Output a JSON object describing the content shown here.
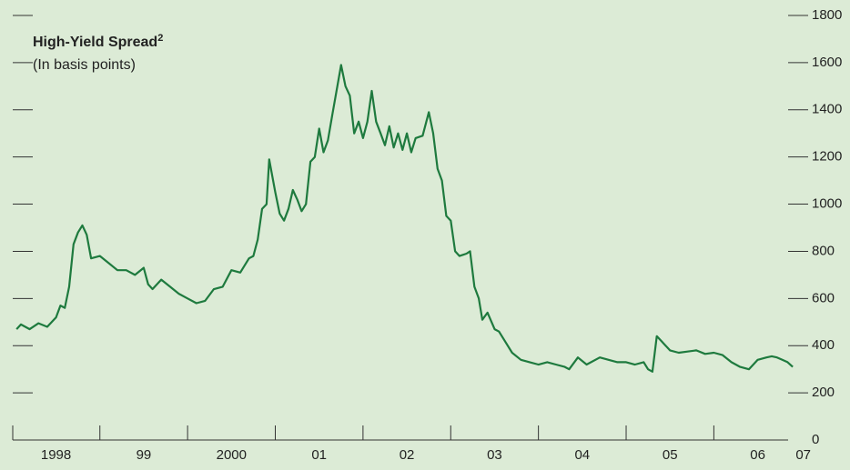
{
  "chart_data": {
    "type": "line",
    "title": "High-Yield Spread",
    "title_note": "2",
    "subtitle": "(In basis points)",
    "series": [
      {
        "color": "#1e7a3e",
        "x": [
          1998.05,
          1998.1,
          1998.2,
          1998.3,
          1998.4,
          1998.5,
          1998.55,
          1998.6,
          1998.65,
          1998.7,
          1998.75,
          1998.8,
          1998.85,
          1998.9,
          1999.0,
          1999.1,
          1999.2,
          1999.3,
          1999.4,
          1999.5,
          1999.55,
          1999.6,
          1999.7,
          1999.8,
          1999.9,
          2000.0,
          2000.1,
          2000.2,
          2000.3,
          2000.4,
          2000.5,
          2000.6,
          2000.7,
          2000.75,
          2000.8,
          2000.85,
          2000.9,
          2000.93,
          2001.0,
          2001.05,
          2001.1,
          2001.15,
          2001.2,
          2001.25,
          2001.3,
          2001.35,
          2001.4,
          2001.45,
          2001.5,
          2001.55,
          2001.6,
          2001.65,
          2001.75,
          2001.8,
          2001.85,
          2001.9,
          2001.95,
          2002.0,
          2002.05,
          2002.1,
          2002.15,
          2002.2,
          2002.25,
          2002.3,
          2002.35,
          2002.4,
          2002.45,
          2002.5,
          2002.55,
          2002.6,
          2002.68,
          2002.75,
          2002.8,
          2002.85,
          2002.9,
          2002.95,
          2003.0,
          2003.05,
          2003.1,
          2003.18,
          2003.22,
          2003.27,
          2003.32,
          2003.36,
          2003.42,
          2003.5,
          2003.55,
          2003.6,
          2003.7,
          2003.8,
          2003.9,
          2004.0,
          2004.1,
          2004.2,
          2004.3,
          2004.35,
          2004.45,
          2004.55,
          2004.7,
          2004.8,
          2004.9,
          2005.0,
          2005.1,
          2005.2,
          2005.25,
          2005.3,
          2005.35,
          2005.4,
          2005.45,
          2005.5,
          2005.6,
          2005.7,
          2005.8,
          2005.9,
          2006.0,
          2006.1,
          2006.2,
          2006.3,
          2006.4,
          2006.5,
          2006.6,
          2006.66,
          2006.72,
          2006.78,
          2006.84,
          2006.9
        ],
        "values": [
          470,
          490,
          470,
          495,
          480,
          520,
          570,
          560,
          650,
          830,
          880,
          910,
          870,
          770,
          780,
          750,
          720,
          720,
          700,
          730,
          660,
          640,
          680,
          650,
          620,
          600,
          580,
          590,
          640,
          650,
          720,
          710,
          770,
          780,
          850,
          980,
          1000,
          1190,
          1050,
          960,
          930,
          980,
          1060,
          1020,
          970,
          1000,
          1180,
          1200,
          1320,
          1220,
          1270,
          1380,
          1590,
          1500,
          1460,
          1300,
          1350,
          1280,
          1350,
          1480,
          1350,
          1300,
          1250,
          1330,
          1240,
          1300,
          1230,
          1300,
          1220,
          1280,
          1290,
          1390,
          1300,
          1150,
          1100,
          950,
          930,
          800,
          780,
          790,
          800,
          650,
          600,
          510,
          540,
          470,
          460,
          430,
          370,
          340,
          330,
          320,
          330,
          320,
          310,
          300,
          350,
          320,
          350,
          340,
          330,
          330,
          320,
          330,
          300,
          290,
          440,
          420,
          400,
          380,
          370,
          375,
          380,
          365,
          370,
          360,
          330,
          310,
          300,
          340,
          350,
          355,
          350,
          340,
          330,
          310
        ]
      }
    ],
    "xlim": [
      1997.965,
      2007.075
    ],
    "xticks": [
      1999,
      2000,
      2001,
      2002,
      2003,
      2004,
      2005,
      2006
    ],
    "xtick_labels": [
      {
        "value": 1998.5,
        "label": "1998"
      },
      {
        "value": 1999.5,
        "label": "99"
      },
      {
        "value": 2000.5,
        "label": "2000"
      },
      {
        "value": 2001.5,
        "label": "01"
      },
      {
        "value": 2002.5,
        "label": "02"
      },
      {
        "value": 2003.5,
        "label": "03"
      },
      {
        "value": 2004.5,
        "label": "04"
      },
      {
        "value": 2005.5,
        "label": "05"
      },
      {
        "value": 2006.5,
        "label": "06"
      },
      {
        "value": 2007.02,
        "label": "07"
      }
    ],
    "ylim": [
      0,
      1800
    ],
    "yticks": [
      0,
      200,
      400,
      600,
      800,
      1000,
      1200,
      1400,
      1600,
      1800
    ]
  }
}
